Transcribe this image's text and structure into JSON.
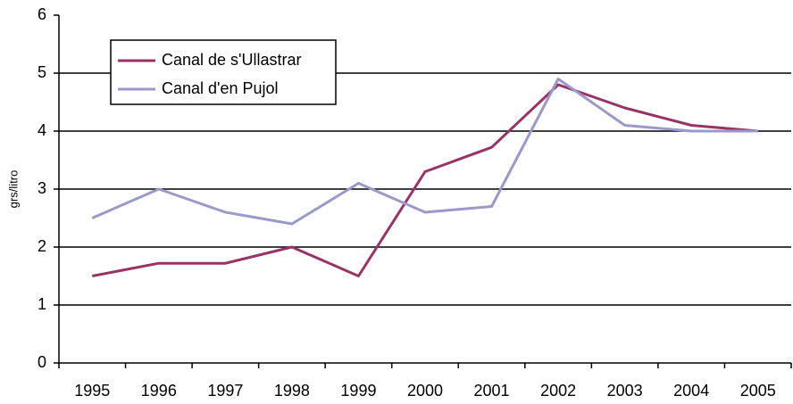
{
  "chart_data": {
    "type": "line",
    "y_label": "grs/litro",
    "categories": [
      "1995",
      "1996",
      "1997",
      "1998",
      "1999",
      "2000",
      "2001",
      "2002",
      "2003",
      "2004",
      "2005"
    ],
    "series": [
      {
        "name": "Canal de s'Ullastrar",
        "color": "#993366",
        "values": [
          1.5,
          1.72,
          1.72,
          2.0,
          1.5,
          3.3,
          3.72,
          4.8,
          4.4,
          4.1,
          4.0
        ]
      },
      {
        "name": "Canal d'en Pujol",
        "color": "#9999cc",
        "values": [
          2.5,
          3.0,
          2.6,
          2.4,
          3.1,
          2.6,
          2.7,
          4.9,
          4.1,
          4.0,
          4.0
        ]
      }
    ],
    "ylim": [
      0,
      6
    ],
    "yticks": [
      0,
      1,
      2,
      3,
      4,
      5,
      6
    ],
    "grid": true,
    "legend": "upper-left"
  }
}
